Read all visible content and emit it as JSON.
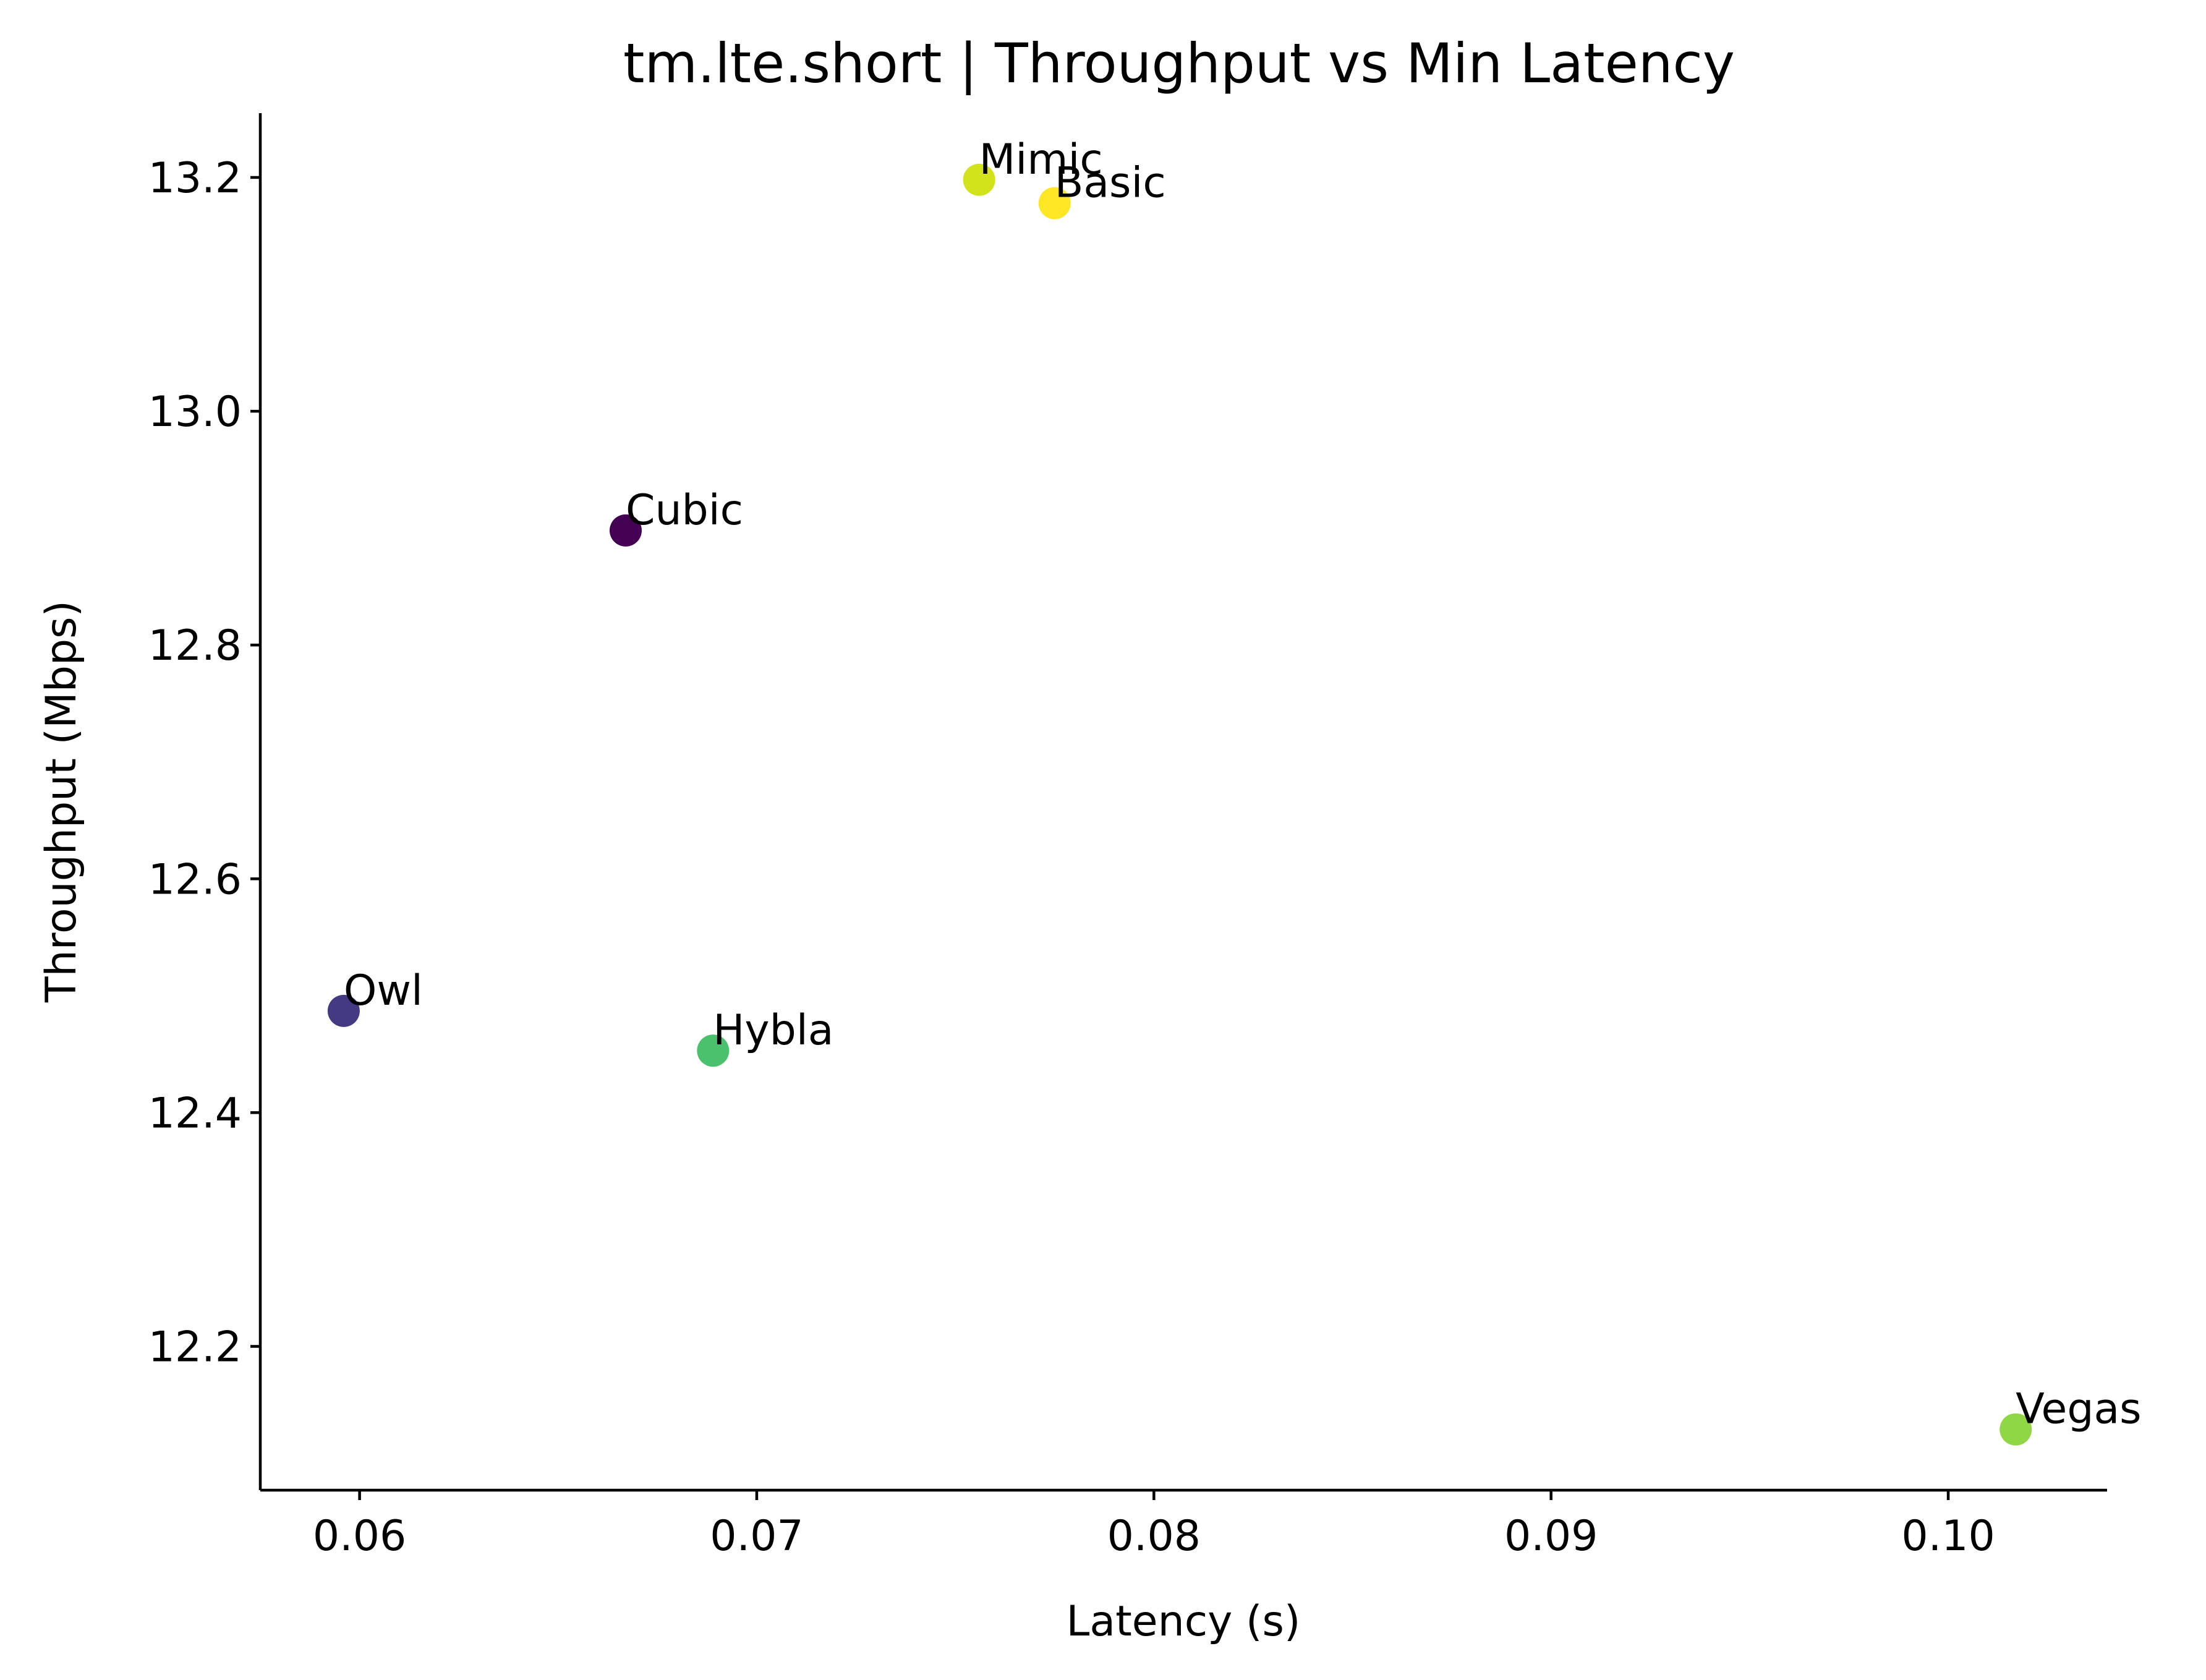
{
  "chart_data": {
    "type": "scatter",
    "title": "tm.lte.short | Throughput vs Min Latency",
    "xlabel": "Latency (s)",
    "ylabel": "Throughput (Mbps)",
    "xlim": [
      0.0575,
      0.104
    ],
    "ylim": [
      12.077,
      13.255
    ],
    "xticks": [
      0.06,
      0.07,
      0.08,
      0.09,
      0.1
    ],
    "xtick_labels": [
      "0.06",
      "0.07",
      "0.08",
      "0.09",
      "0.10"
    ],
    "yticks": [
      12.2,
      12.4,
      12.6,
      12.8,
      13.0,
      13.2
    ],
    "ytick_labels": [
      "12.2",
      "12.4",
      "12.6",
      "12.8",
      "13.0",
      "13.2"
    ],
    "grid": false,
    "points": [
      {
        "label": "Cubic",
        "x": 0.0667,
        "y": 12.898,
        "color": "#440154"
      },
      {
        "label": "Owl",
        "x": 0.0596,
        "y": 12.487,
        "color": "#443983"
      },
      {
        "label": "Hybla",
        "x": 0.0689,
        "y": 12.453,
        "color": "#4ac16d"
      },
      {
        "label": "Vegas",
        "x": 0.1017,
        "y": 12.129,
        "color": "#8fd744"
      },
      {
        "label": "Mimic",
        "x": 0.0756,
        "y": 13.198,
        "color": "#d2e21b"
      },
      {
        "label": "Basic",
        "x": 0.0775,
        "y": 13.178,
        "color": "#fde725"
      }
    ]
  }
}
